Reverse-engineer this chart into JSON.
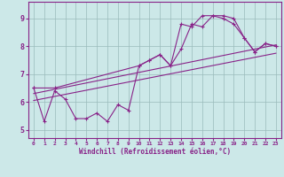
{
  "xlabel": "Windchill (Refroidissement éolien,°C)",
  "xlim": [
    -0.5,
    23.5
  ],
  "ylim": [
    4.7,
    9.6
  ],
  "yticks": [
    5,
    6,
    7,
    8,
    9
  ],
  "xticks": [
    0,
    1,
    2,
    3,
    4,
    5,
    6,
    7,
    8,
    9,
    10,
    11,
    12,
    13,
    14,
    15,
    16,
    17,
    18,
    19,
    20,
    21,
    22,
    23
  ],
  "bg_color": "#cce8e8",
  "line_color": "#882288",
  "grid_color": "#99bbbb",
  "line1_x": [
    0,
    1,
    2,
    3,
    4,
    5,
    6,
    7,
    8,
    9,
    10,
    11,
    12,
    13,
    14,
    15,
    16,
    17,
    18,
    19,
    20,
    21,
    22,
    23
  ],
  "line1_y": [
    6.5,
    5.3,
    6.4,
    6.1,
    5.4,
    5.4,
    5.6,
    5.3,
    5.9,
    5.7,
    7.3,
    7.5,
    7.7,
    7.3,
    7.9,
    8.8,
    8.7,
    9.1,
    9.1,
    9.0,
    8.3,
    7.8,
    8.1,
    8.0
  ],
  "line2_x": [
    0,
    2,
    10,
    11,
    12,
    13,
    14,
    15,
    16,
    17,
    18,
    19,
    20,
    21,
    22,
    23
  ],
  "line2_y": [
    6.5,
    6.5,
    7.3,
    7.5,
    7.7,
    7.3,
    8.8,
    8.7,
    9.1,
    9.1,
    9.0,
    8.8,
    8.3,
    7.8,
    8.1,
    8.0
  ],
  "line3_x": [
    0,
    23
  ],
  "line3_y": [
    6.3,
    8.05
  ],
  "line4_x": [
    0,
    23
  ],
  "line4_y": [
    6.05,
    7.75
  ],
  "marker_size": 2.5,
  "linewidth": 0.8
}
